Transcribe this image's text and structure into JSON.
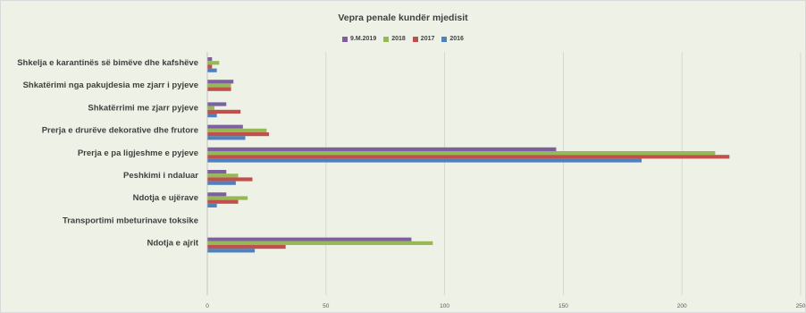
{
  "chart_data": {
    "type": "bar",
    "orientation": "horizontal",
    "title": "Vepra penale kundër mjedisit",
    "categories": [
      "Shkelja e karantinës së bimëve dhe kafshëve",
      "Shkatërimi nga pakujdesia me zjarr i pyjeve",
      "Shkatërrimi me zjarr pyjeve",
      "Prerja e drurëve dekorative dhe frutore",
      "Prerja e pa ligjeshme e pyjeve",
      "Peshkimi i ndaluar",
      "Ndotja e ujërave",
      "Transportimi mbeturinave toksike",
      "Ndotja e ajrit"
    ],
    "series": [
      {
        "name": "9.M.2019",
        "color": "#7e60a0",
        "values": [
          2,
          11,
          8,
          15,
          147,
          8,
          8,
          0,
          86
        ]
      },
      {
        "name": "2018",
        "color": "#97b955",
        "values": [
          5,
          10,
          3,
          25,
          214,
          13,
          17,
          0,
          95
        ]
      },
      {
        "name": "2017",
        "color": "#c0504d",
        "values": [
          2,
          10,
          14,
          26,
          220,
          19,
          13,
          0,
          33
        ]
      },
      {
        "name": "2016",
        "color": "#4f81bd",
        "values": [
          4,
          0,
          4,
          16,
          183,
          12,
          4,
          0,
          20
        ]
      }
    ],
    "xlim": [
      0,
      250
    ],
    "xticks": [
      0,
      50,
      100,
      150,
      200,
      250
    ],
    "grid": true,
    "legend_position": "top"
  }
}
